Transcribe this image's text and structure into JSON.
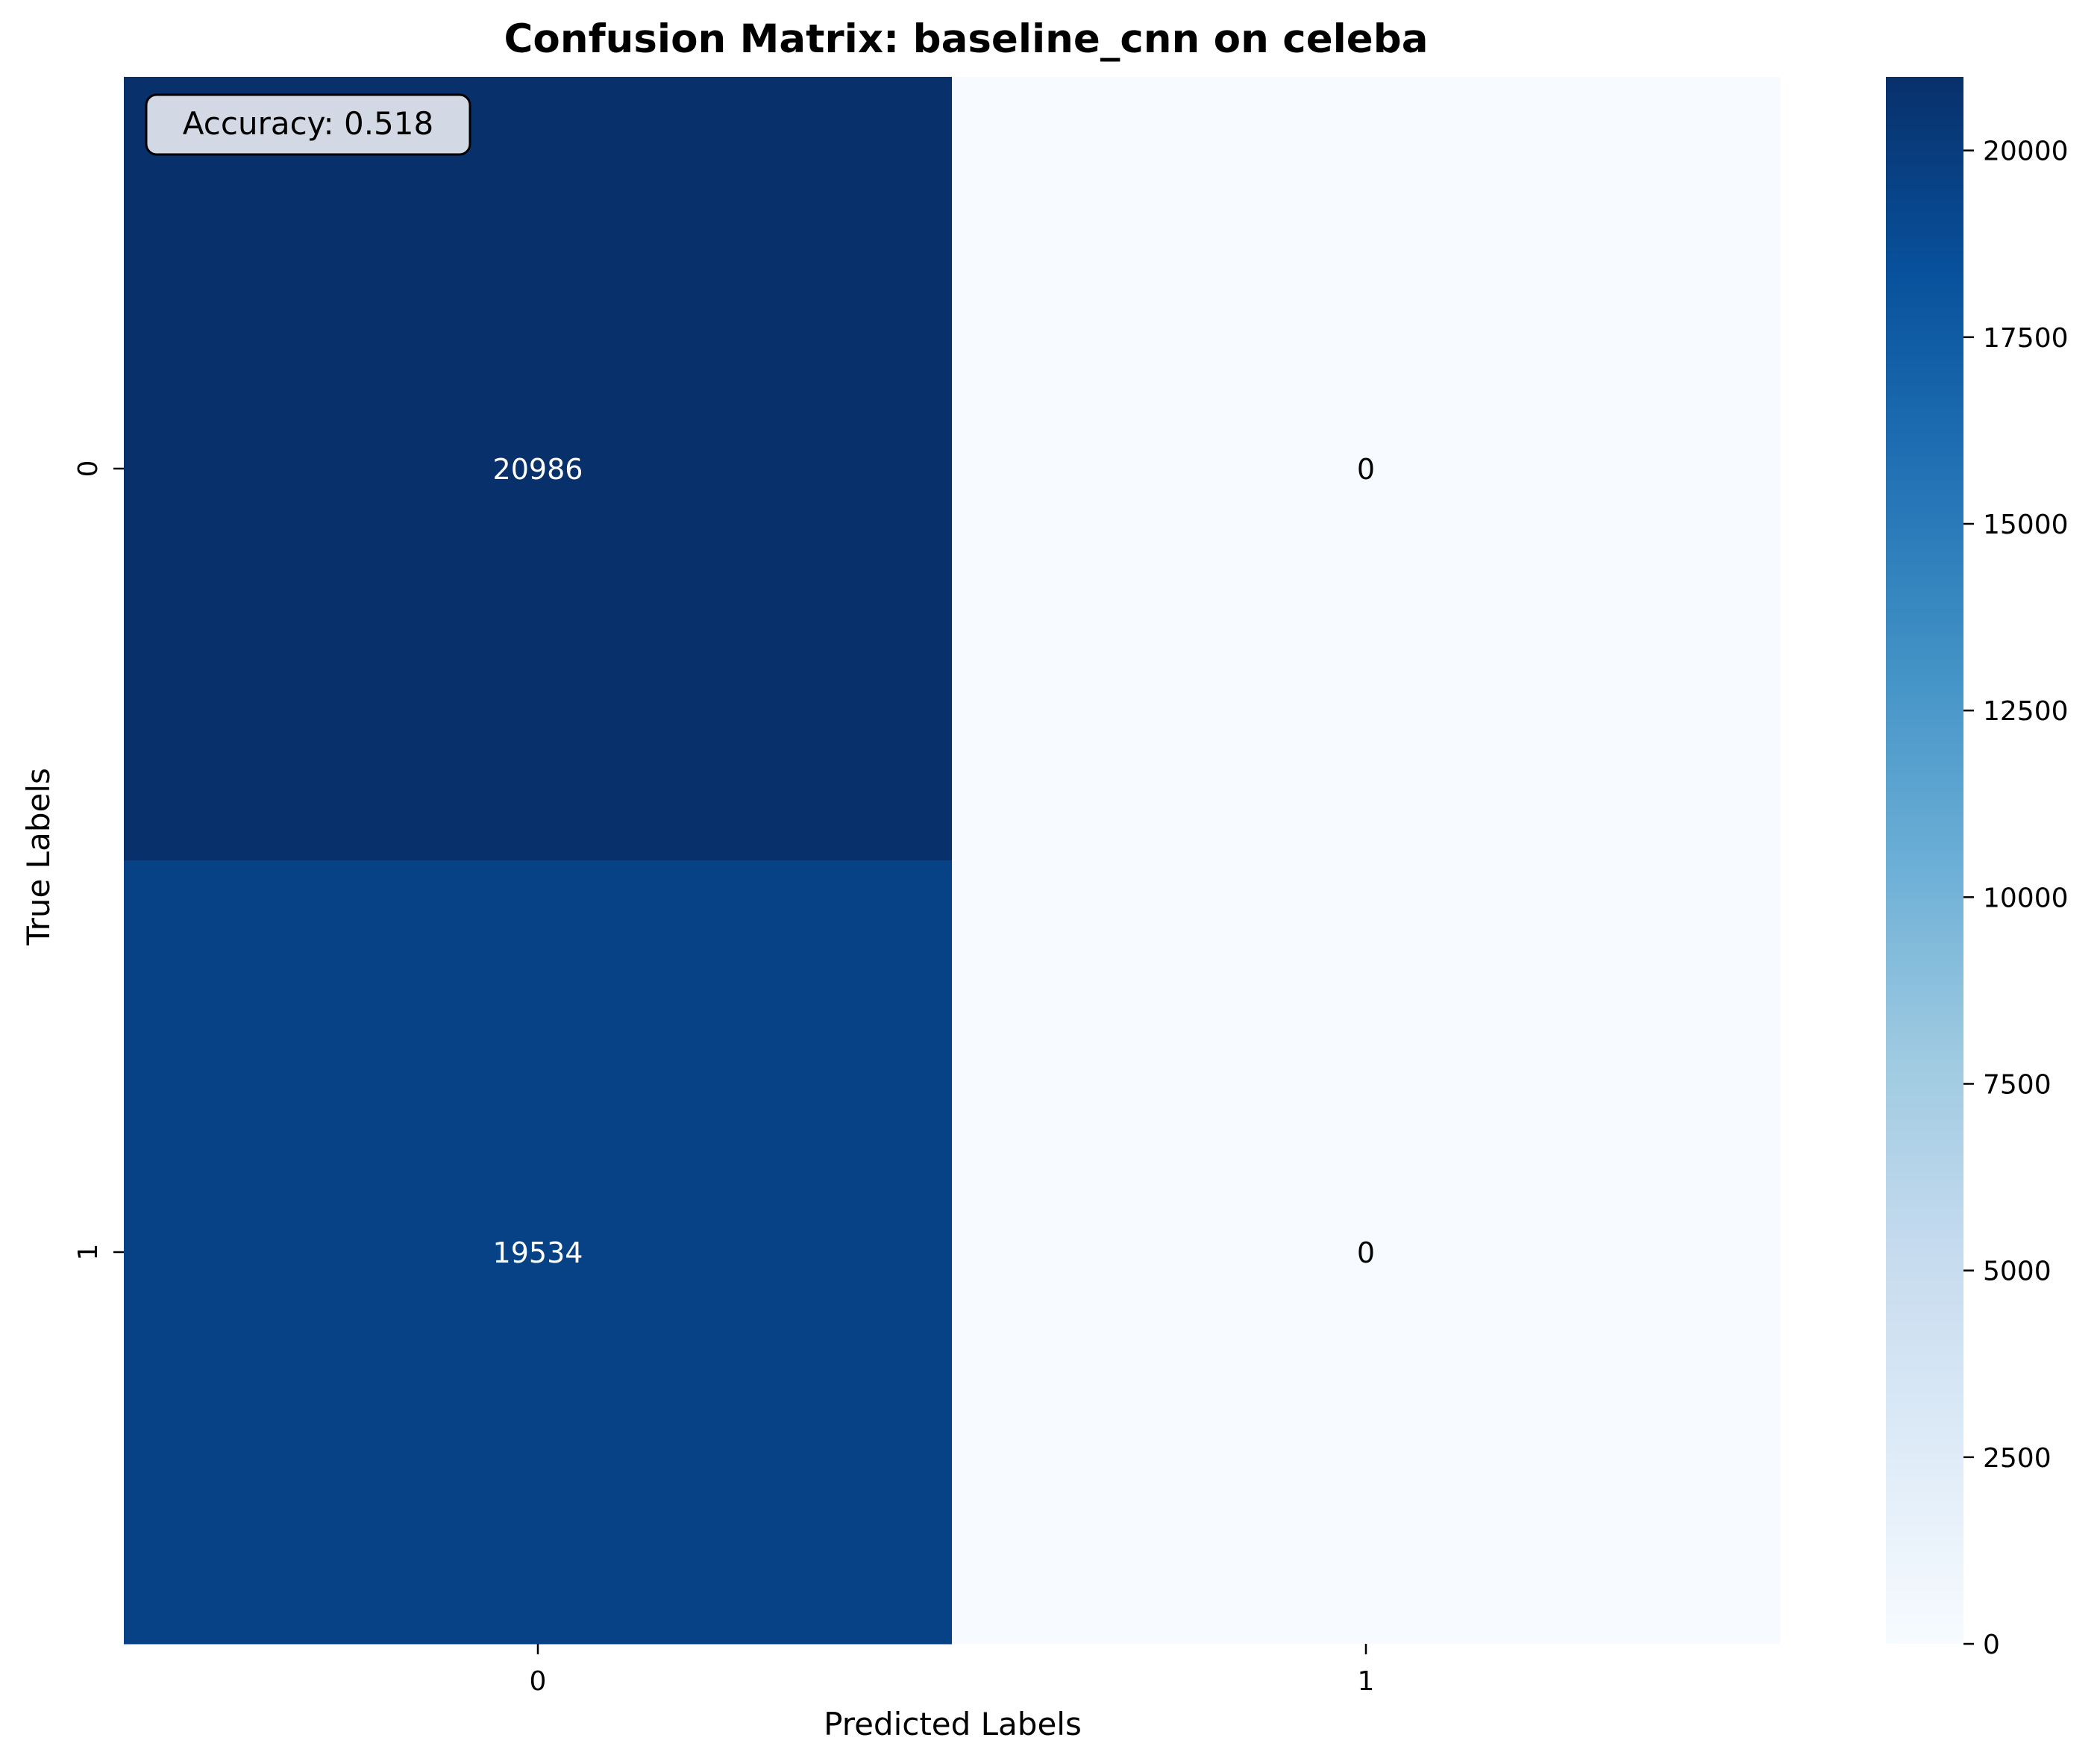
{
  "chart_data": {
    "type": "heatmap",
    "title": "Confusion Matrix: baseline_cnn on celeba",
    "xlabel": "Predicted Labels",
    "ylabel": "True Labels",
    "x_categories": [
      "0",
      "1"
    ],
    "y_categories": [
      "0",
      "1"
    ],
    "matrix": [
      [
        20986,
        0
      ],
      [
        19534,
        0
      ]
    ],
    "annotation": "Accuracy: 0.518",
    "colorbar": {
      "colormap": "Blues",
      "range": [
        0,
        20986
      ],
      "ticks": [
        0,
        2500,
        5000,
        7500,
        10000,
        12500,
        15000,
        17500,
        20000
      ],
      "tick_labels": [
        "0",
        "2500",
        "5000",
        "7500",
        "10000",
        "12500",
        "15000",
        "17500",
        "20000"
      ],
      "position": "right"
    },
    "grid": false,
    "colors": {
      "cmap_stops": [
        "#f7fbff",
        "#deebf7",
        "#c6dbef",
        "#9ecae1",
        "#6baed6",
        "#4292c6",
        "#2171b5",
        "#08519c",
        "#08306b"
      ],
      "annotation_box": "#d2d8e4"
    }
  }
}
